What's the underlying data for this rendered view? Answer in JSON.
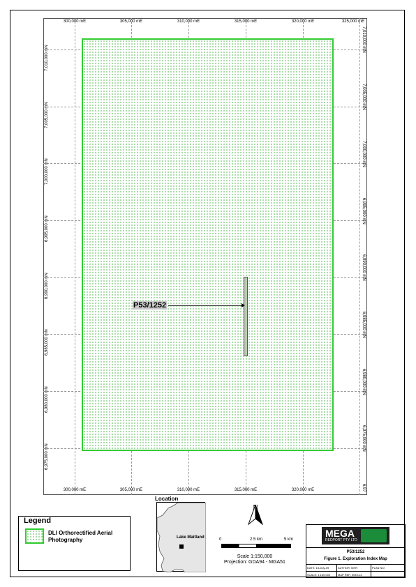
{
  "map": {
    "top_ticks": [
      "300,000 mE",
      "305,000 mE",
      "310,000 mE",
      "315,000 mE",
      "320,000 mE",
      "325,000 mE"
    ],
    "bottom_ticks": [
      "300,000 mE",
      "305,000 mE",
      "310,000 mE",
      "315,000 mE",
      "320,000 mE"
    ],
    "left_ticks": [
      "7,010,000 mN",
      "7,005,000 mN",
      "7,000,000 mN",
      "6,995,000 mN",
      "6,990,000 mN",
      "6,985,000 mN",
      "6,980,000 mN",
      "6,975,000 mN"
    ],
    "right_ticks": [
      "7,010,000 mN",
      "7,005,000 mN",
      "7,000,000 mN",
      "6,995,000 mN",
      "6,990,000 mN",
      "6,985,000 mN",
      "6,980,000 mN",
      "6,975,000 mN",
      "6,97"
    ],
    "tenement_label": "P53/1252",
    "photo_color": "#33cc33"
  },
  "location": {
    "title": "Location",
    "place": "Lake Maitland"
  },
  "legend": {
    "title": "Legend",
    "item": "DLI Orthorectified Aerial Photography"
  },
  "scalebar": {
    "north": "N",
    "ticks": [
      "0",
      "2.5 km",
      "5 km"
    ],
    "scale": "Scale 1:150,000",
    "projection": "Projection: GDA94 - MGA51"
  },
  "titleblock": {
    "logo_main": "MEGA",
    "logo_sub": "REDPORT PTY LTD",
    "tenement": "P53/1252",
    "figure": "Figure 1. Exploration Index Map",
    "date": "DATE: 15-July-09",
    "author": "AUTHOR: MHR",
    "plan": "PLAN NO:",
    "scale": "SCALE: 1:150,000",
    "map_ref": "MAP REF: 0049-13",
    "logo_color": "#1a8c3a"
  }
}
